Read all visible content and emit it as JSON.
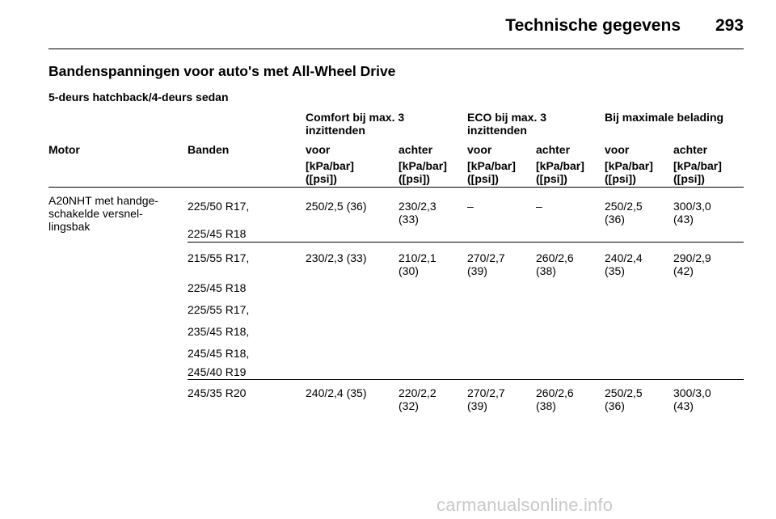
{
  "header": {
    "title": "Technische gegevens",
    "page_number": "293"
  },
  "section": {
    "title": "Bandenspanningen voor auto's met All-Wheel Drive",
    "subtitle": "5-deurs hatchback/4-deurs sedan"
  },
  "table": {
    "group_headers": [
      "Comfort bij max. 3 inzittenden",
      "ECO bij max. 3 inzittenden",
      "Bij maximale belading"
    ],
    "columns": [
      "Motor",
      "Banden",
      "voor",
      "achter",
      "voor",
      "achter",
      "voor",
      "achter"
    ],
    "units": [
      "[kPa/bar] ([psi])",
      "[kPa/bar] ([psi])",
      "[kPa/bar] ([psi])",
      "[kPa/bar] ([psi])",
      "[kPa/bar] ([psi])",
      "[kPa/bar] ([psi])"
    ],
    "motor": "A20NHT met handge-schakelde versnel-lingsbak",
    "groups": [
      {
        "tyres": [
          "225/50 R17,",
          "225/45 R18"
        ],
        "values": [
          "250/2,5 (36)",
          "230/2,3 (33)",
          "–",
          "–",
          "250/2,5 (36)",
          "300/3,0 (43)"
        ]
      },
      {
        "tyres": [
          "215/55 R17,",
          "225/45 R18",
          "225/55 R17,",
          "235/45 R18,",
          "245/45 R18,",
          "245/40 R19"
        ],
        "values": [
          "230/2,3 (33)",
          "210/2,1 (30)",
          "270/2,7 (39)",
          "260/2,6 (38)",
          "240/2,4 (35)",
          "290/2,9 (42)"
        ]
      },
      {
        "tyres": [
          "245/35 R20"
        ],
        "values": [
          "240/2,4 (35)",
          "220/2,2 (32)",
          "270/2,7 (39)",
          "260/2,6 (38)",
          "250/2,5 (36)",
          "300/3,0 (43)"
        ]
      }
    ]
  },
  "watermark": "carmanualsonline.info"
}
